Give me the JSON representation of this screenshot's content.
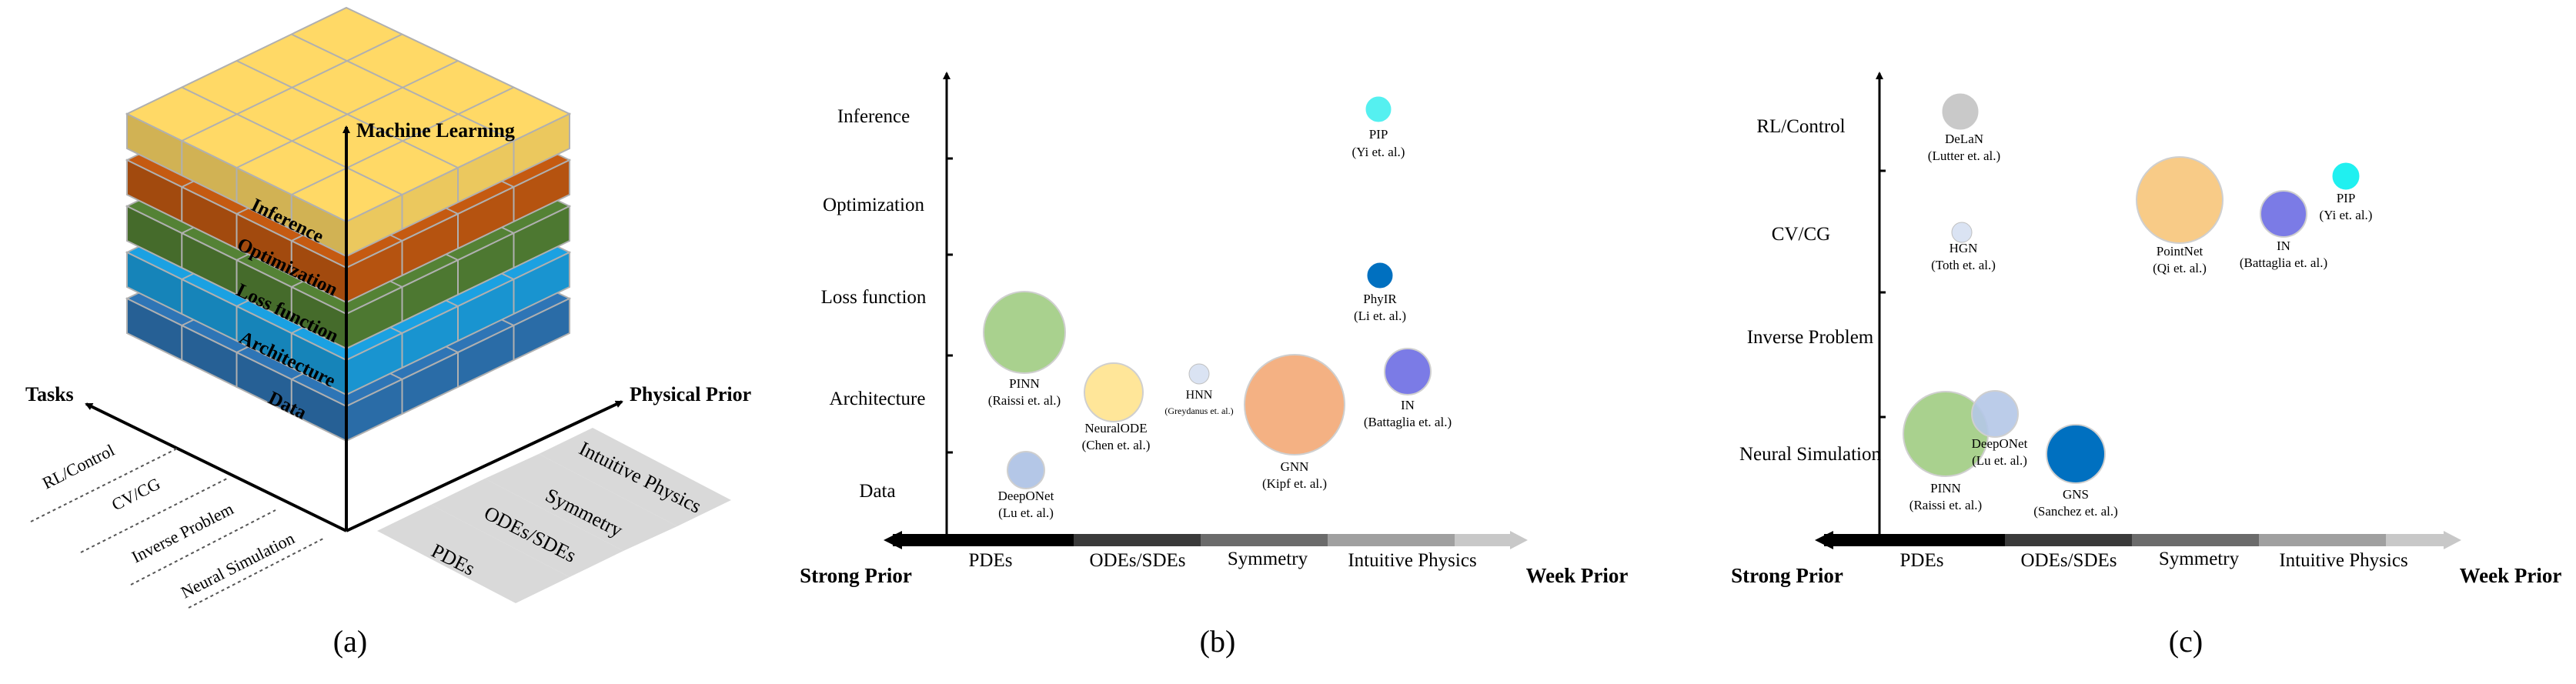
{
  "panel_a": {
    "caption": "(a)",
    "vertical_axis_label": "Machine Learning",
    "left_axis_label": "Tasks",
    "right_axis_label": "Physical Prior",
    "layers": [
      {
        "label": "Data",
        "color": "#2e75b6"
      },
      {
        "label": "Architecture",
        "color": "#1ba1e2"
      },
      {
        "label": "Loss function",
        "color": "#548235"
      },
      {
        "label": "Optimization",
        "color": "#c55a11"
      },
      {
        "label": "Inference",
        "color": "#ffd966"
      }
    ],
    "tasks": [
      "RL/Control",
      "CV/CG",
      "Inverse Problem",
      "Neural Simulation"
    ],
    "priors": [
      "PDEs",
      "ODEs/SDEs",
      "Symmetry",
      "Intuitive Physics"
    ]
  },
  "panel_b": {
    "caption": "(b)",
    "y_categories": [
      "Data",
      "Architecture",
      "Loss function",
      "Optimization",
      "Inference"
    ],
    "x_categories": [
      "PDEs",
      "ODEs/SDEs",
      "Symmetry",
      "Intuitive Physics"
    ],
    "x_left_label": "Strong Prior",
    "x_right_label": "Week Prior",
    "bubbles": [
      {
        "name": "PIP",
        "ref": "(Yi et. al.)",
        "color": "#55f0f0"
      },
      {
        "name": "PINN",
        "ref": "(Raissi et. al.)",
        "color": "#a9d18e"
      },
      {
        "name": "NeuralODE",
        "ref": "(Chen et. al.)",
        "color": "#ffe699"
      },
      {
        "name": "HNN",
        "ref": "(Greydanus et. al.)",
        "color": "#dae3f3"
      },
      {
        "name": "GNN",
        "ref": "(Kipf et. al.)",
        "color": "#f4b183"
      },
      {
        "name": "PhyIR",
        "ref": "(Li et. al.)",
        "color": "#0070c0"
      },
      {
        "name": "IN",
        "ref": "(Battaglia et. al.)",
        "color": "#7b7be6"
      },
      {
        "name": "DeepONet",
        "ref": "(Lu et. al.)",
        "color": "#b4c7e7"
      }
    ]
  },
  "panel_c": {
    "caption": "(c)",
    "y_categories": [
      "Neural Simulation",
      "Inverse Problem",
      "CV/CG",
      "RL/Control"
    ],
    "x_categories": [
      "PDEs",
      "ODEs/SDEs",
      "Symmetry",
      "Intuitive Physics"
    ],
    "x_left_label": "Strong Prior",
    "x_right_label": "Week Prior",
    "bubbles": [
      {
        "name": "DeLaN",
        "ref": "(Lutter et. al.)",
        "color": "#c9c9c9"
      },
      {
        "name": "HGN",
        "ref": "(Toth et. al.)",
        "color": "#dae3f3"
      },
      {
        "name": "PointNet",
        "ref": "(Qi et. al.)",
        "color": "#f8cb87"
      },
      {
        "name": "IN",
        "ref": "(Battaglia et. al.)",
        "color": "#7b7be6"
      },
      {
        "name": "PIP",
        "ref": "(Yi et. al.)",
        "color": "#20f0f0"
      },
      {
        "name": "PINN",
        "ref": "(Raissi et. al.)",
        "color": "#a9d18e"
      },
      {
        "name": "DeepONet",
        "ref": "(Lu et. al.)",
        "color": "#b4c7e7"
      },
      {
        "name": "GNS",
        "ref": "(Sanchez et. al.)",
        "color": "#0070c0"
      }
    ]
  }
}
